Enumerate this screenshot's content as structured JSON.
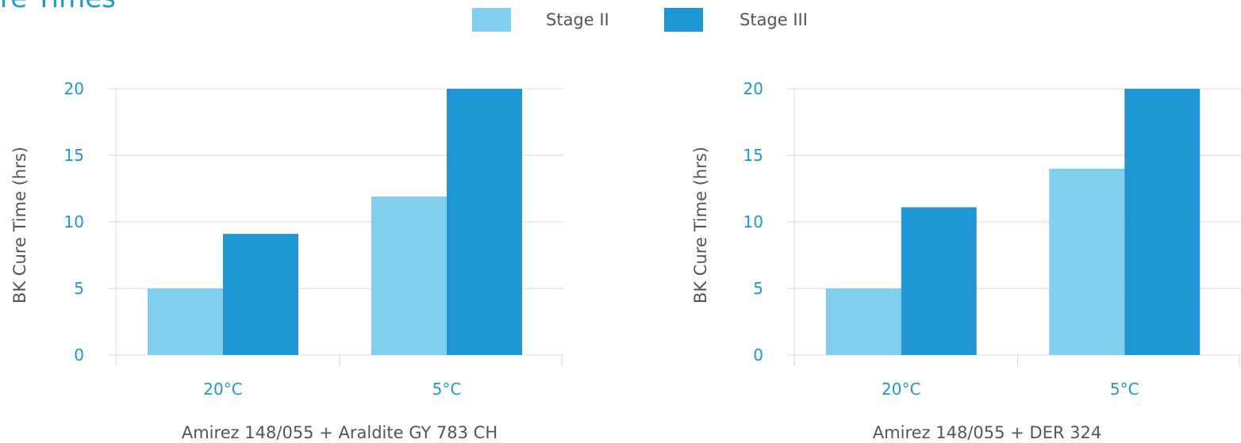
{
  "page_title": "re Times",
  "legend": [
    {
      "label": "Stage II",
      "color": "#81ceee"
    },
    {
      "label": "Stage III",
      "color": "#1e97d4"
    }
  ],
  "colors": {
    "axis_tick": "#1e97d4",
    "axis_text": "#555555",
    "grid": "#d9d9d9"
  },
  "chart_data": [
    {
      "type": "bar",
      "title": "",
      "xlabel": "Amirez 148/055 + Araldite GY 783 CH",
      "ylabel": "BK Cure Time (hrs)",
      "categories": [
        "20°C",
        "5°C"
      ],
      "series": [
        {
          "name": "Stage II",
          "values": [
            5,
            11.9
          ]
        },
        {
          "name": "Stage III",
          "values": [
            9.1,
            20
          ]
        }
      ],
      "ylim": [
        0,
        20
      ],
      "yticks": [
        0,
        5,
        10,
        15,
        20
      ],
      "grid": true
    },
    {
      "type": "bar",
      "title": "",
      "xlabel": "Amirez 148/055 + DER 324",
      "ylabel": "BK Cure Time (hrs)",
      "categories": [
        "20°C",
        "5°C"
      ],
      "series": [
        {
          "name": "Stage II",
          "values": [
            5,
            14
          ]
        },
        {
          "name": "Stage III",
          "values": [
            11.1,
            20
          ]
        }
      ],
      "ylim": [
        0,
        20
      ],
      "yticks": [
        0,
        5,
        10,
        15,
        20
      ],
      "grid": true
    }
  ]
}
